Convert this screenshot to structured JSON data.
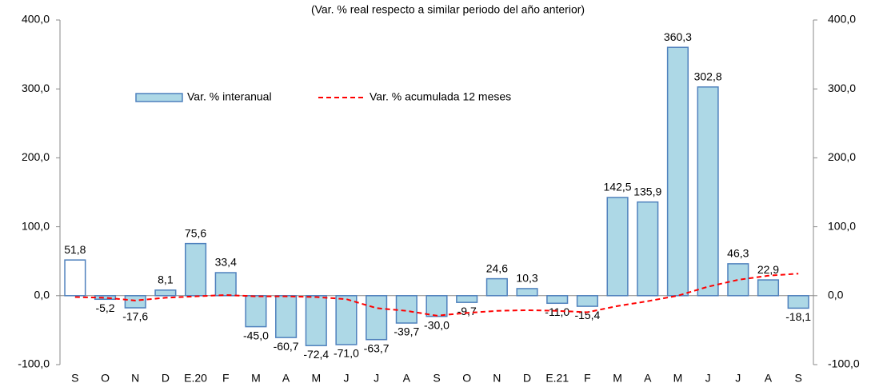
{
  "chart_data": {
    "type": "bar_line",
    "title": "(Var. % real respecto a similar periodo del año anterior)",
    "categories": [
      "S",
      "O",
      "N",
      "D",
      "E.20",
      "F",
      "M",
      "A",
      "M",
      "J",
      "J",
      "A",
      "S",
      "O",
      "N",
      "D",
      "E.21",
      "F",
      "M",
      "A",
      "M",
      "J",
      "J",
      "A",
      "S"
    ],
    "series": [
      {
        "name": "Var. % interanual",
        "type": "bar",
        "color": "#add8e6",
        "edge_color": "#4f81bd",
        "colors": [
          "#ffffff",
          "#add8e6",
          "#add8e6",
          "#add8e6",
          "#add8e6",
          "#add8e6",
          "#add8e6",
          "#add8e6",
          "#add8e6",
          "#add8e6",
          "#add8e6",
          "#add8e6",
          "#add8e6",
          "#add8e6",
          "#add8e6",
          "#add8e6",
          "#add8e6",
          "#add8e6",
          "#add8e6",
          "#add8e6",
          "#add8e6",
          "#add8e6",
          "#add8e6",
          "#add8e6",
          "#add8e6"
        ],
        "values": [
          51.8,
          -5.2,
          -17.6,
          8.1,
          75.6,
          33.4,
          -45.0,
          -60.7,
          -72.4,
          -71.0,
          -63.7,
          -39.7,
          -30.0,
          -9.7,
          24.6,
          10.3,
          -11.0,
          -15.4,
          142.5,
          135.9,
          360.3,
          302.8,
          46.3,
          22.9,
          -18.1
        ],
        "value_labels": [
          "51,8",
          "-5,2",
          "-17,6",
          "8,1",
          "75,6",
          "33,4",
          "-45,0",
          "-60,7",
          "-72,4",
          "-71,0",
          "-63,7",
          "-39,7",
          "-30,0",
          "-9,7",
          "24,6",
          "10,3",
          "-11,0",
          "-15,4",
          "142,5",
          "135,9",
          "360,3",
          "302,8",
          "46,3",
          "22,9",
          "-18,1"
        ]
      },
      {
        "name": "Var. % acumulada 12 meses",
        "type": "line",
        "axis": "y2",
        "color": "#ff0000",
        "dashed": true,
        "values": [
          -2,
          -3,
          -7,
          -3,
          -1,
          1,
          -1,
          -1,
          -2,
          -5,
          -18,
          -22,
          -29,
          -25,
          -22,
          -21,
          -22,
          -24,
          -15,
          -8,
          0,
          13,
          23,
          29,
          32
        ]
      }
    ],
    "ylim": [
      -100,
      400
    ],
    "yticks": [
      {
        "value": -100,
        "label": "-100,0"
      },
      {
        "value": 0,
        "label": "0,0"
      },
      {
        "value": 100,
        "label": "100,0"
      },
      {
        "value": 200,
        "label": "200,0"
      },
      {
        "value": 300,
        "label": "300,0"
      },
      {
        "value": 400,
        "label": "400,0"
      }
    ],
    "y2lim": [
      -100,
      400
    ],
    "y2ticks": [
      {
        "value": -100,
        "label": "-100,0"
      },
      {
        "value": 0,
        "label": "0,0"
      },
      {
        "value": 100,
        "label": "100,0"
      },
      {
        "value": 200,
        "label": "200,0"
      },
      {
        "value": 300,
        "label": "300,0"
      },
      {
        "value": 400,
        "label": "400,0"
      }
    ],
    "legend": "top",
    "grid": false
  }
}
